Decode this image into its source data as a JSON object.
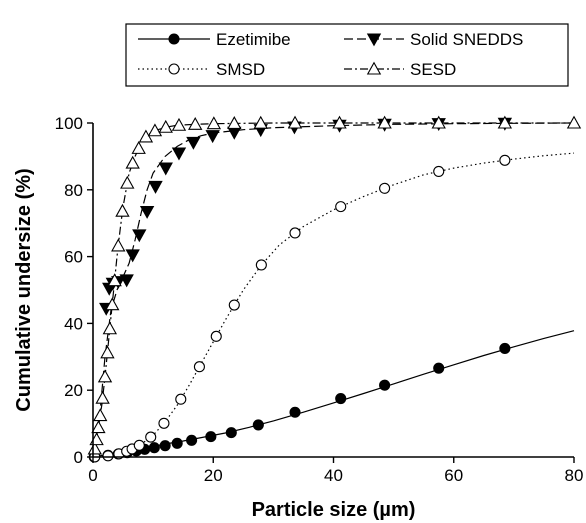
{
  "chart_data": {
    "type": "line",
    "title": "",
    "xlabel": "Particle size (µm)",
    "ylabel": "Cumulative undersize (%)",
    "xlim": [
      0,
      80
    ],
    "ylim": [
      0,
      100
    ],
    "xticks": [
      0,
      20,
      40,
      60,
      80
    ],
    "yticks": [
      0,
      20,
      40,
      60,
      80,
      100
    ],
    "grid": false,
    "legend_placement": "top-center",
    "series": [
      {
        "name": "Ezetimibe",
        "line_style": "solid",
        "marker": "filled-circle",
        "curve_x": [
          0,
          2,
          4,
          6,
          8,
          10,
          12,
          15,
          18,
          22,
          26,
          30,
          35,
          40,
          45,
          50,
          55,
          60,
          65,
          70,
          75,
          80
        ],
        "curve_y": [
          0,
          0.6,
          1.2,
          1.8,
          2.5,
          3.2,
          3.9,
          4.8,
          5.8,
          7.2,
          8.9,
          10.8,
          13.4,
          16.2,
          19.0,
          21.9,
          24.8,
          27.6,
          30.4,
          33.0,
          35.5,
          37.8
        ],
        "points_x": [
          0.2,
          2.5,
          4.2,
          5.7,
          7.2,
          8.6,
          10.2,
          12.0,
          14.0,
          16.4,
          19.6,
          23.0,
          27.5,
          33.6,
          41.2,
          48.5,
          57.5,
          68.5
        ],
        "points_y": [
          0.0,
          0.5,
          0.9,
          1.3,
          1.8,
          2.3,
          2.8,
          3.4,
          4.1,
          5.0,
          6.1,
          7.3,
          9.6,
          13.4,
          17.5,
          21.5,
          26.6,
          32.5
        ]
      },
      {
        "name": "Solid SNEDDS",
        "line_style": "dashed",
        "marker": "filled-triangle-down",
        "curve_x": [
          0,
          1,
          2,
          3,
          4,
          5,
          6,
          7,
          8,
          9,
          10,
          12,
          14,
          16,
          18,
          20,
          25,
          30,
          40,
          50,
          60,
          70,
          80
        ],
        "curve_y": [
          0,
          10,
          30,
          44,
          50,
          54,
          58,
          65,
          73,
          80,
          85,
          90,
          93,
          95,
          96.2,
          97,
          98,
          98.6,
          99.2,
          99.6,
          99.8,
          99.9,
          100
        ],
        "points_x": [
          2.2,
          2.7,
          3.3,
          4.2,
          5.6,
          6.6,
          7.7,
          9.0,
          10.4,
          12.1,
          14.3,
          16.7,
          19.9,
          23.5,
          27.9,
          33.5,
          41.0,
          48.5,
          57.5,
          68.5
        ],
        "points_y": [
          44.5,
          50.5,
          52.0,
          52.5,
          53.0,
          60.5,
          66.5,
          73.5,
          81.0,
          86.5,
          91.0,
          94.2,
          96.2,
          97.2,
          98.0,
          98.8,
          99.3,
          99.6,
          99.8,
          99.9
        ]
      },
      {
        "name": "SMSD",
        "line_style": "dotted",
        "marker": "open-circle",
        "curve_x": [
          0,
          2,
          4,
          5,
          6,
          7,
          8,
          10,
          12,
          14,
          16,
          18,
          20,
          22,
          25,
          28,
          31,
          35,
          40,
          45,
          50,
          55,
          60,
          65,
          70,
          75,
          80
        ],
        "curve_y": [
          0,
          0.2,
          0.8,
          1.3,
          2.0,
          2.8,
          3.8,
          6.5,
          10.5,
          15.5,
          21.5,
          28,
          34.5,
          41,
          50,
          57.5,
          63.5,
          69,
          74,
          78,
          81.5,
          84.5,
          86.5,
          88,
          89.2,
          90.2,
          91
        ]
      },
      {
        "name": "SESD",
        "line_style": "dash-dot",
        "marker": "open-triangle-up",
        "curve_x": [
          0,
          0.5,
          1,
          1.5,
          2,
          2.5,
          3,
          3.5,
          4,
          4.5,
          5,
          5.5,
          6,
          7,
          8,
          9,
          10,
          12,
          14,
          17,
          20,
          25,
          30,
          40,
          50,
          60,
          70,
          80
        ],
        "curve_y": [
          0,
          4,
          10,
          16,
          24,
          33,
          42,
          51,
          60,
          68,
          75,
          80,
          85,
          90,
          94,
          96.3,
          97.5,
          98.7,
          99.3,
          99.6,
          99.8,
          99.9,
          100,
          100,
          100,
          100,
          100,
          100
        ]
      }
    ]
  }
}
